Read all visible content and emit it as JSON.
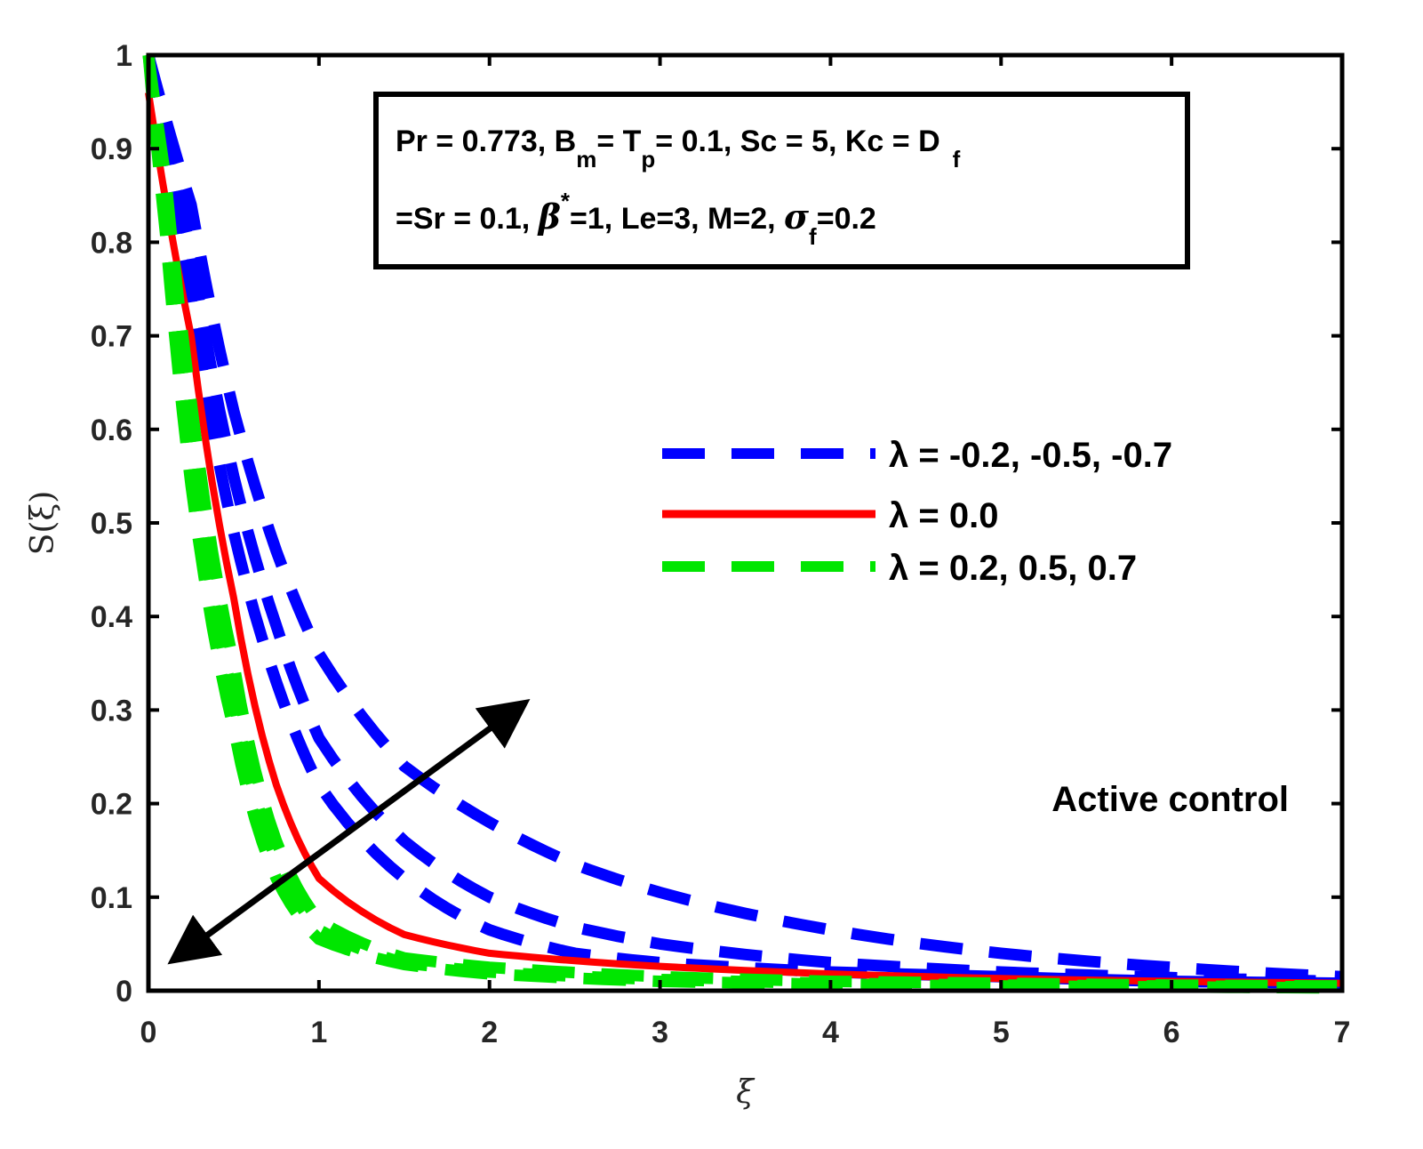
{
  "chart_data": {
    "type": "line",
    "xlabel": "ξ",
    "ylabel": "S(ξ)",
    "xlim": [
      0,
      7
    ],
    "ylim": [
      0,
      1
    ],
    "xticks": [
      "0",
      "1",
      "2",
      "3",
      "4",
      "5",
      "6",
      "7"
    ],
    "yticks": [
      "0",
      "0.1",
      "0.2",
      "0.3",
      "0.4",
      "0.5",
      "0.6",
      "0.7",
      "0.8",
      "0.9",
      "1"
    ],
    "grid": false,
    "legend_placement": "right",
    "legend": [
      {
        "label": "λ = -0.2, -0.5, -0.7",
        "color": "#0000ff",
        "style": "dashed"
      },
      {
        "label": "λ = 0.0",
        "color": "#ff0000",
        "style": "solid"
      },
      {
        "label": "λ = 0.2, 0.5, 0.7",
        "color": "#00e600",
        "style": "dashed"
      }
    ],
    "series": [
      {
        "color": "#0000ff",
        "style": "dashed",
        "points": [
          [
            0,
            1
          ],
          [
            0.25,
            0.84
          ],
          [
            0.5,
            0.62
          ],
          [
            0.75,
            0.47
          ],
          [
            1,
            0.36
          ],
          [
            1.5,
            0.24
          ],
          [
            2,
            0.18
          ],
          [
            2.5,
            0.135
          ],
          [
            3,
            0.105
          ],
          [
            4,
            0.065
          ],
          [
            5,
            0.04
          ],
          [
            6,
            0.025
          ],
          [
            7,
            0.015
          ]
        ]
      },
      {
        "color": "#0000ff",
        "style": "dashed",
        "points": [
          [
            0,
            1
          ],
          [
            0.25,
            0.79
          ],
          [
            0.5,
            0.55
          ],
          [
            0.75,
            0.39
          ],
          [
            1,
            0.27
          ],
          [
            1.5,
            0.16
          ],
          [
            2,
            0.1
          ],
          [
            2.5,
            0.068
          ],
          [
            3,
            0.05
          ],
          [
            4,
            0.03
          ],
          [
            5,
            0.02
          ],
          [
            6,
            0.014
          ],
          [
            7,
            0.01
          ]
        ]
      },
      {
        "color": "#0000ff",
        "style": "dashed",
        "points": [
          [
            0,
            1
          ],
          [
            0.25,
            0.74
          ],
          [
            0.5,
            0.49
          ],
          [
            0.75,
            0.33
          ],
          [
            1,
            0.22
          ],
          [
            1.5,
            0.12
          ],
          [
            2,
            0.065
          ],
          [
            2.5,
            0.04
          ],
          [
            3,
            0.03
          ],
          [
            4,
            0.02
          ],
          [
            5,
            0.015
          ],
          [
            6,
            0.01
          ],
          [
            7,
            0.008
          ]
        ]
      },
      {
        "color": "#ff0000",
        "style": "solid",
        "points": [
          [
            0,
            0.96
          ],
          [
            0.25,
            0.7
          ],
          [
            0.5,
            0.42
          ],
          [
            0.75,
            0.22
          ],
          [
            1,
            0.12
          ],
          [
            1.5,
            0.06
          ],
          [
            2,
            0.04
          ],
          [
            2.5,
            0.032
          ],
          [
            3,
            0.026
          ],
          [
            4,
            0.018
          ],
          [
            5,
            0.013
          ],
          [
            6,
            0.01
          ],
          [
            7,
            0.008
          ]
        ]
      },
      {
        "color": "#00e600",
        "style": "dashed",
        "points": [
          [
            0,
            1
          ],
          [
            0.1,
            0.87
          ],
          [
            0.25,
            0.63
          ],
          [
            0.5,
            0.35
          ],
          [
            0.75,
            0.16
          ],
          [
            1,
            0.075
          ],
          [
            1.5,
            0.035
          ],
          [
            2,
            0.025
          ],
          [
            3,
            0.015
          ],
          [
            4,
            0.01
          ],
          [
            5,
            0.008
          ],
          [
            6,
            0.006
          ],
          [
            7,
            0.005
          ]
        ]
      },
      {
        "color": "#00e600",
        "style": "dashed",
        "points": [
          [
            0,
            1
          ],
          [
            0.1,
            0.84
          ],
          [
            0.25,
            0.58
          ],
          [
            0.5,
            0.31
          ],
          [
            0.75,
            0.14
          ],
          [
            1,
            0.065
          ],
          [
            1.5,
            0.03
          ],
          [
            2,
            0.02
          ],
          [
            3,
            0.012
          ],
          [
            4,
            0.008
          ],
          [
            5,
            0.006
          ],
          [
            6,
            0.005
          ],
          [
            7,
            0.004
          ]
        ]
      },
      {
        "color": "#00e600",
        "style": "dashed",
        "points": [
          [
            0,
            1
          ],
          [
            0.1,
            0.81
          ],
          [
            0.25,
            0.54
          ],
          [
            0.5,
            0.28
          ],
          [
            0.75,
            0.12
          ],
          [
            1,
            0.055
          ],
          [
            1.5,
            0.028
          ],
          [
            2,
            0.018
          ],
          [
            3,
            0.01
          ],
          [
            4,
            0.007
          ],
          [
            5,
            0.005
          ],
          [
            6,
            0.004
          ],
          [
            7,
            0.003
          ]
        ]
      }
    ],
    "annotation_box": {
      "line1": [
        "Pr = 0.773, B",
        "m",
        "= T",
        "p",
        "= 0.1, Sc = 5, Kc = D",
        "f"
      ],
      "line2": [
        "=Sr = 0.1, ",
        "β",
        "*",
        "=1, Le=3, M=2, ",
        "σ",
        "f",
        "=0.2"
      ]
    },
    "annotation_text": "Active control",
    "arrow": {
      "from": [
        0.2,
        0.04
      ],
      "to": [
        2.15,
        0.3
      ]
    }
  }
}
